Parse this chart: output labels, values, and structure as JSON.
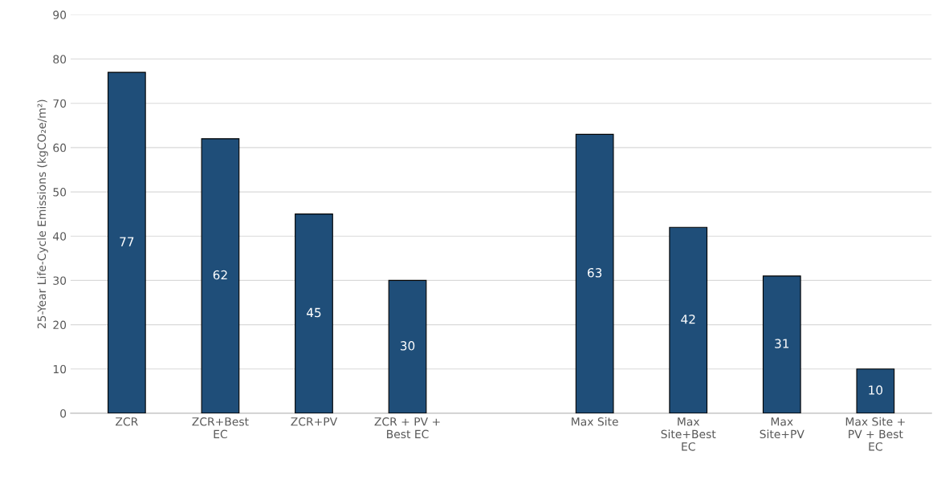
{
  "chart_data": {
    "type": "bar",
    "ylabel": "25-Year Life-Cycle Emissions (kgCO₂e/m²)",
    "categories": [
      "ZCR",
      "ZCR+Best\nEC",
      "ZCR+PV",
      "ZCR + PV +\nBest EC",
      null,
      "Max Site",
      "Max\nSite+Best\nEC",
      "Max\nSite+PV",
      "Max Site +\nPV + Best\nEC"
    ],
    "values": [
      77,
      62,
      45,
      30,
      null,
      63,
      42,
      31,
      10
    ],
    "color": "#1f4e79",
    "ylim": [
      0,
      90
    ],
    "yticks": [
      0,
      10,
      20,
      30,
      40,
      50,
      60,
      70,
      80,
      90
    ],
    "grid": "y",
    "data_labels": true
  }
}
